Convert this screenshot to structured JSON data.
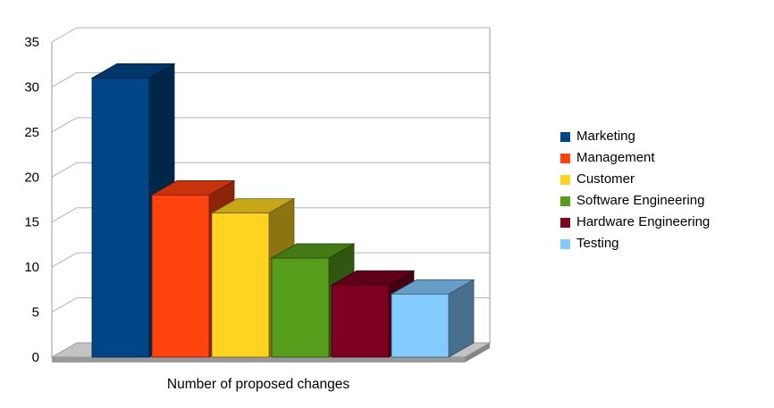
{
  "chart_data": {
    "type": "bar",
    "style": "3d-column",
    "title": "",
    "xlabel": "Number of proposed changes",
    "ylabel": "",
    "ylim": [
      0,
      35
    ],
    "yticks": [
      0,
      5,
      10,
      15,
      20,
      25,
      30,
      35
    ],
    "grid": true,
    "legend_position": "right",
    "categories": [
      "Marketing",
      "Management",
      "Customer",
      "Software Engineering",
      "Hardware Engineering",
      "Testing"
    ],
    "values": [
      31,
      18,
      16,
      11,
      8,
      7
    ],
    "colors": [
      "#004586",
      "#FF420E",
      "#FFD320",
      "#579D1C",
      "#7E0021",
      "#83CAFF"
    ]
  },
  "colors": {
    "gridline": "#b3b3b3",
    "wall_border": "#9a9a9a",
    "floor_top": "#c3c3c3",
    "floor_front": "#9a9a9a",
    "floor_side": "#868686",
    "text": "#000000"
  }
}
